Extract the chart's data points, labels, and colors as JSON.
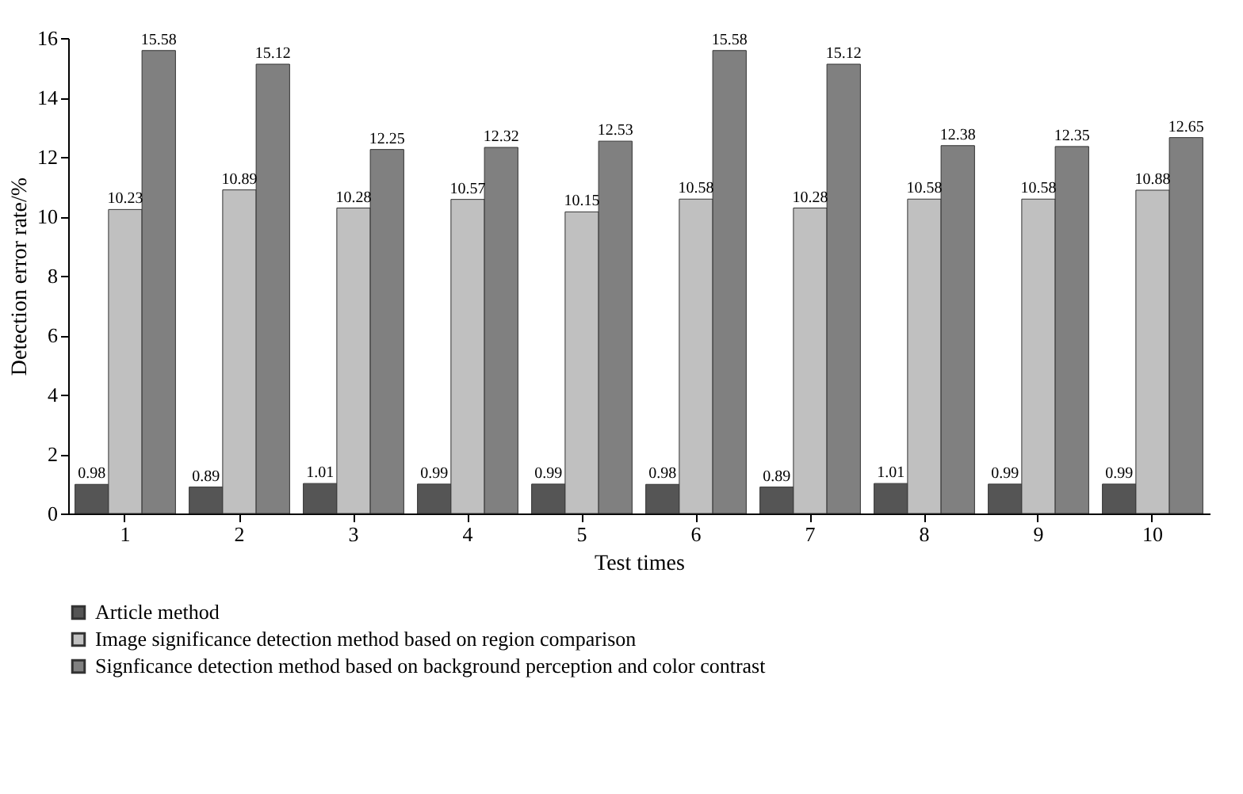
{
  "chart_data": {
    "type": "bar",
    "xlabel": "Test times",
    "ylabel": "Detection error rate/%",
    "categories": [
      "1",
      "2",
      "3",
      "4",
      "5",
      "6",
      "7",
      "8",
      "9",
      "10"
    ],
    "series": [
      {
        "name": "Article method",
        "color": "#555555",
        "values": [
          0.98,
          0.89,
          1.01,
          0.99,
          0.99,
          0.98,
          0.89,
          1.01,
          0.99,
          0.99
        ]
      },
      {
        "name": "Image significance detection method based on region comparison",
        "color": "#c0c0c0",
        "values": [
          10.23,
          10.89,
          10.28,
          10.57,
          10.15,
          10.58,
          10.28,
          10.58,
          10.58,
          10.88
        ]
      },
      {
        "name": "Signficance detection method based on background perception and color contrast",
        "color": "#808080",
        "values": [
          15.58,
          15.12,
          12.25,
          12.32,
          12.53,
          15.58,
          15.12,
          12.38,
          12.35,
          12.65
        ]
      }
    ],
    "data_labels": true,
    "ylim": [
      0,
      16
    ],
    "yticks": [
      0,
      2,
      4,
      6,
      8,
      10,
      12,
      14,
      16
    ],
    "grid": false,
    "legend": "bottom"
  }
}
